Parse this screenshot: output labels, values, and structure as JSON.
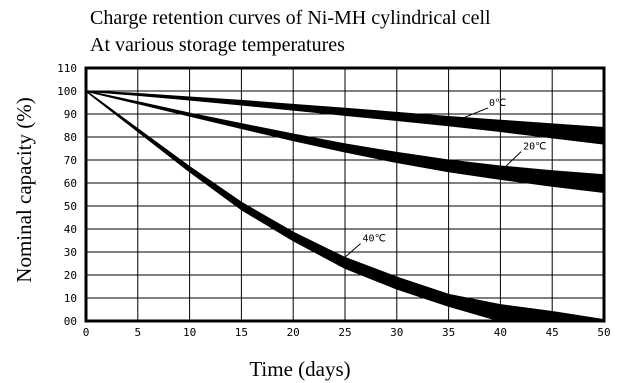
{
  "chart_data": {
    "type": "line",
    "title": "Charge retention curves of Ni-MH cylindrical cell",
    "subtitle": "At various storage temperatures",
    "xlabel": "Time (days)",
    "ylabel": "Nominal capacity (%)",
    "xlim": [
      0,
      50
    ],
    "ylim": [
      0,
      110
    ],
    "xticks": [
      "0",
      "5",
      "10",
      "15",
      "20",
      "25",
      "30",
      "35",
      "40",
      "45",
      "50"
    ],
    "yticks": [
      "00",
      "10",
      "20",
      "30",
      "40",
      "50",
      "60",
      "70",
      "80",
      "90",
      "100",
      "110"
    ],
    "grid": true,
    "series": [
      {
        "name": "0℃",
        "x": [
          0,
          5,
          10,
          15,
          20,
          25,
          30,
          35,
          40,
          45,
          50
        ],
        "upper": [
          100,
          98.8,
          97.3,
          95.8,
          94.1,
          92.4,
          90.6,
          88.8,
          87.2,
          85.6,
          84
        ],
        "lower": [
          100,
          98.2,
          96.2,
          94,
          91.8,
          89.5,
          87.3,
          85,
          82.5,
          79.7,
          77
        ]
      },
      {
        "name": "20℃",
        "x": [
          0,
          5,
          10,
          15,
          20,
          25,
          30,
          35,
          40,
          45,
          50
        ],
        "upper": [
          100,
          95.2,
          90.3,
          85.7,
          81.2,
          76.9,
          73.2,
          69.9,
          67.3,
          65.2,
          63.5
        ],
        "lower": [
          100,
          94.6,
          89.2,
          83.8,
          78.5,
          73.6,
          69,
          65,
          61.7,
          58.7,
          56
        ]
      },
      {
        "name": "40℃",
        "x": [
          0,
          5,
          10,
          15,
          20,
          25,
          30,
          35,
          40,
          45,
          50
        ],
        "upper": [
          100,
          83.5,
          67,
          51.5,
          38.5,
          27.5,
          19,
          11.5,
          7,
          4,
          0.5
        ],
        "lower": [
          100,
          82.5,
          65,
          48.5,
          35,
          23,
          14,
          6.5,
          0,
          0,
          0
        ]
      }
    ],
    "annotations": [
      "0℃",
      "20℃",
      "40℃"
    ]
  }
}
